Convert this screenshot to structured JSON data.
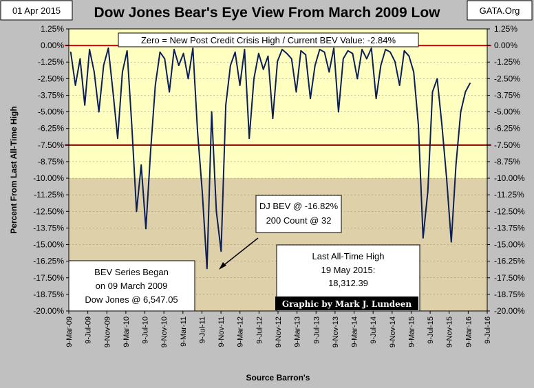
{
  "header": {
    "date": "01 Apr 2015",
    "title": "Dow Jones Bear's Eye View From March 2009 Low",
    "source_tag": "GATA.Org"
  },
  "chart_data": {
    "type": "line",
    "title": "Dow Jones Bear's Eye View From March 2009 Low",
    "xlabel": "Source Barron's",
    "ylabel": "Percent From Last All-Time High",
    "ylim": [
      -20,
      1.25
    ],
    "y_ticks": [
      "1.25%",
      "0.00%",
      "-1.25%",
      "-2.50%",
      "-3.75%",
      "-5.00%",
      "-6.25%",
      "-7.50%",
      "-8.75%",
      "-10.00%",
      "-11.25%",
      "-12.50%",
      "-13.75%",
      "-15.00%",
      "-16.25%",
      "-17.50%",
      "-18.75%",
      "-20.00%"
    ],
    "x_ticks": [
      "9-Mar-09",
      "9-Jul-09",
      "9-Nov-09",
      "9-Mar-10",
      "9-Jul-10",
      "9-Nov-10",
      "9-Mar-11",
      "9-Jul-11",
      "9-Nov-11",
      "9-Mar-12",
      "9-Jul-12",
      "9-Nov-12",
      "9-Mar-13",
      "9-Jul-13",
      "9-Nov-13",
      "9-Mar-14",
      "9-Jul-14",
      "9-Nov-14",
      "9-Mar-15",
      "9-Jul-15",
      "9-Nov-15",
      "9-Mar-16",
      "9-Jul-16"
    ],
    "reference_lines": [
      {
        "y": 0,
        "color": "#e00000"
      },
      {
        "y": -7.5,
        "color": "#800000"
      }
    ],
    "shaded_region": {
      "from": -10,
      "to": -20,
      "color": "#ded0a8"
    },
    "upper_region_color": "#ffffc0",
    "line_color": "#0a1e5a",
    "series": [
      {
        "x": [
          0,
          1,
          2,
          3,
          4,
          5,
          6,
          7,
          8,
          9,
          10,
          11,
          12,
          13,
          14,
          15,
          16,
          17,
          18,
          19,
          20,
          21,
          22,
          23,
          24,
          25,
          26,
          27,
          28,
          29,
          30,
          31,
          32,
          33,
          34,
          35,
          36,
          37,
          38,
          39,
          40,
          41,
          42,
          43,
          44,
          45,
          46,
          47,
          48,
          49,
          50,
          51,
          52,
          53,
          54,
          55,
          56,
          57,
          58,
          59,
          60,
          61,
          62,
          63,
          64,
          65,
          66,
          67,
          68,
          69,
          70,
          71,
          72,
          73,
          74,
          75,
          76,
          77,
          78,
          79,
          80,
          81,
          82,
          83,
          84,
          85
        ],
        "values": [
          -0.5,
          -3.0,
          -1.0,
          -4.5,
          -0.3,
          -2.0,
          -5.0,
          -1.5,
          -0.2,
          -3.5,
          -7.0,
          -2.0,
          -0.4,
          -6.0,
          -12.5,
          -9.0,
          -13.8,
          -8.0,
          -3.0,
          -0.5,
          -1.0,
          -3.5,
          -0.3,
          -1.5,
          -0.6,
          -2.5,
          -0.2,
          -6.5,
          -11.0,
          -16.8,
          -5.0,
          -12.5,
          -15.5,
          -4.5,
          -1.5,
          -0.5,
          -3.0,
          -0.3,
          -7.0,
          -2.5,
          -0.6,
          -1.8,
          -0.8,
          -5.5,
          -1.2,
          -0.3,
          -0.6,
          -1.0,
          -3.5,
          -0.4,
          -0.7,
          -4.0,
          -1.5,
          -0.3,
          -0.5,
          -2.0,
          -0.2,
          -5.0,
          -1.0,
          -0.4,
          -0.6,
          -2.5,
          -0.3,
          -1.0,
          -0.2,
          -4.0,
          -1.5,
          -0.3,
          -0.5,
          -1.2,
          -3.0,
          -0.4,
          -0.8,
          -2.0,
          -6.0,
          -14.5,
          -11.0,
          -3.5,
          -2.5,
          -6.0,
          -10.0,
          -14.8,
          -9.0,
          -5.0,
          -3.5,
          -2.84
        ]
      }
    ],
    "annotations": {
      "top_box": "Zero = New Post Credit Crisis High / Current BEV Value:  -2.84%",
      "bev_box_line1": "DJ BEV @ -16.82%",
      "bev_box_line2": "200 Count @ 32",
      "start_box_line1": "BEV Series Began",
      "start_box_line2": "on 09 March 2009",
      "start_box_line3": "Dow Jones @ 6,547.05",
      "high_box_line1": "Last All-Time High",
      "high_box_line2": "19 May 2015:",
      "high_box_line3": "18,312.39",
      "credit": "Graphic by Mark J. Lundeen"
    }
  }
}
